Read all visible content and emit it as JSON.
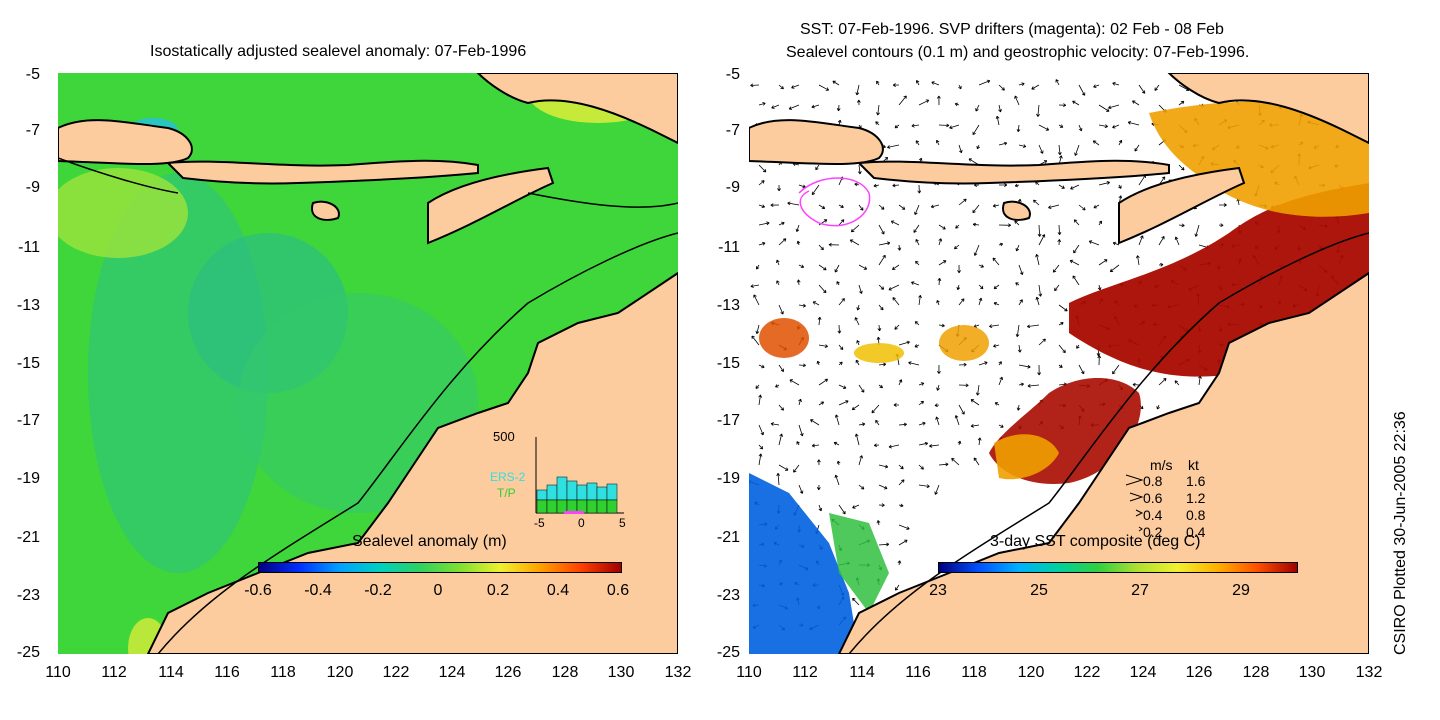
{
  "left_panel": {
    "title": "Isostatically adjusted sealevel anomaly: 07-Feb-1996",
    "colorbar_label": "Sealevel anomaly (m)",
    "colorbar_ticks": [
      "-0.6",
      "-0.4",
      "-0.2",
      "0",
      "0.2",
      "0.4",
      "0.6"
    ],
    "histogram": {
      "ymax_label": "500",
      "series_labels": [
        "ERS-2",
        "T/P"
      ],
      "series_colors": [
        "#30e0e0",
        "#30d030"
      ],
      "x_ticks": [
        "-5",
        "0",
        "5"
      ]
    }
  },
  "right_panel": {
    "title_line1": "SST: 07-Feb-1996. SVP drifters (magenta): 02 Feb - 08 Feb",
    "title_line2": "Sealevel contours (0.1 m) and geostrophic velocity: 07-Feb-1996.",
    "colorbar_label": "3-day SST composite (deg C)",
    "colorbar_ticks": [
      "23",
      "25",
      "27",
      "29"
    ],
    "velocity_legend": {
      "header_ms": "m/s",
      "header_kt": "kt",
      "rows": [
        {
          "ms": "0.8",
          "kt": "1.6"
        },
        {
          "ms": "0.6",
          "kt": "1.2"
        },
        {
          "ms": "0.4",
          "kt": "0.8"
        },
        {
          "ms": "0.2",
          "kt": "0.4"
        }
      ]
    }
  },
  "axes": {
    "y_ticks": [
      "-5",
      "-7",
      "-9",
      "-11",
      "-13",
      "-15",
      "-17",
      "-19",
      "-21",
      "-23",
      "-25"
    ],
    "x_ticks": [
      "110",
      "112",
      "114",
      "116",
      "118",
      "120",
      "122",
      "124",
      "126",
      "128",
      "130",
      "132"
    ]
  },
  "credit": "CSIRO Plotted 30-Jun-2005 22:36",
  "colors": {
    "land": "#fccb9e",
    "ocean_green": "#3ed63a",
    "drifter": "#ff40ff",
    "warm_sst": "#a80a00"
  }
}
